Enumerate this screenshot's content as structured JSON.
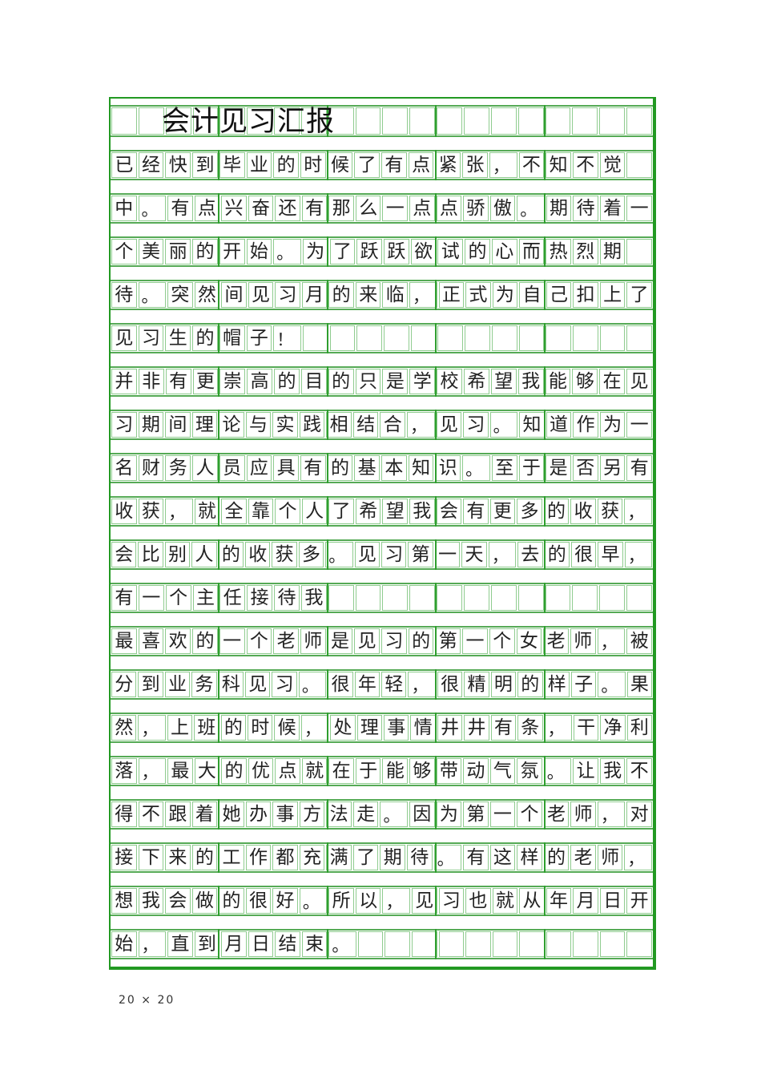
{
  "document": {
    "title": "会计见习汇报",
    "footer_caption": "20 × 20",
    "grid": {
      "columns": 20,
      "rows_count": 19,
      "group_size": 4
    },
    "colors": {
      "outer_border": "#229922",
      "row_line": "#55aa55",
      "cell_border": "#8fcc8f",
      "group_divider": "#2f9f2f",
      "text": "#222222"
    },
    "rows": [
      "已经快到毕业的时候了有点紧张，不知不觉",
      "中。有点兴奋还有那么一点点骄傲。期待着一",
      "个美丽的开始。为了跃跃欲试的心而热烈期",
      "待。突然间见习月的来临，正式为自己扣上了",
      "见习生的帽子！",
      "并非有更崇高的目的只是学校希望我能够在见",
      "习期间理论与实践相结合，见习。知道作为一",
      "名财务人员应具有的基本知识。至于是否另有",
      "收获，就全靠个人了希望我会有更多的收获，",
      "会比别人的收获多。见习第一天，去的很早，",
      "有一个主任接待我",
      "最喜欢的一个老师是见习的第一个女老师，被",
      "分到业务科见习。很年轻，很精明的样子。果",
      "然，上班的时候，处理事情井井有条，干净利",
      "落，最大的优点就在于能够带动气氛。让我不",
      "得不跟着她办事方法走。因为第一个老师，对",
      "接下来的工作都充满了期待。有这样的老师，",
      "想我会做的很好。所以，见习也就从年月日开",
      "始，直到月日结束。"
    ]
  }
}
